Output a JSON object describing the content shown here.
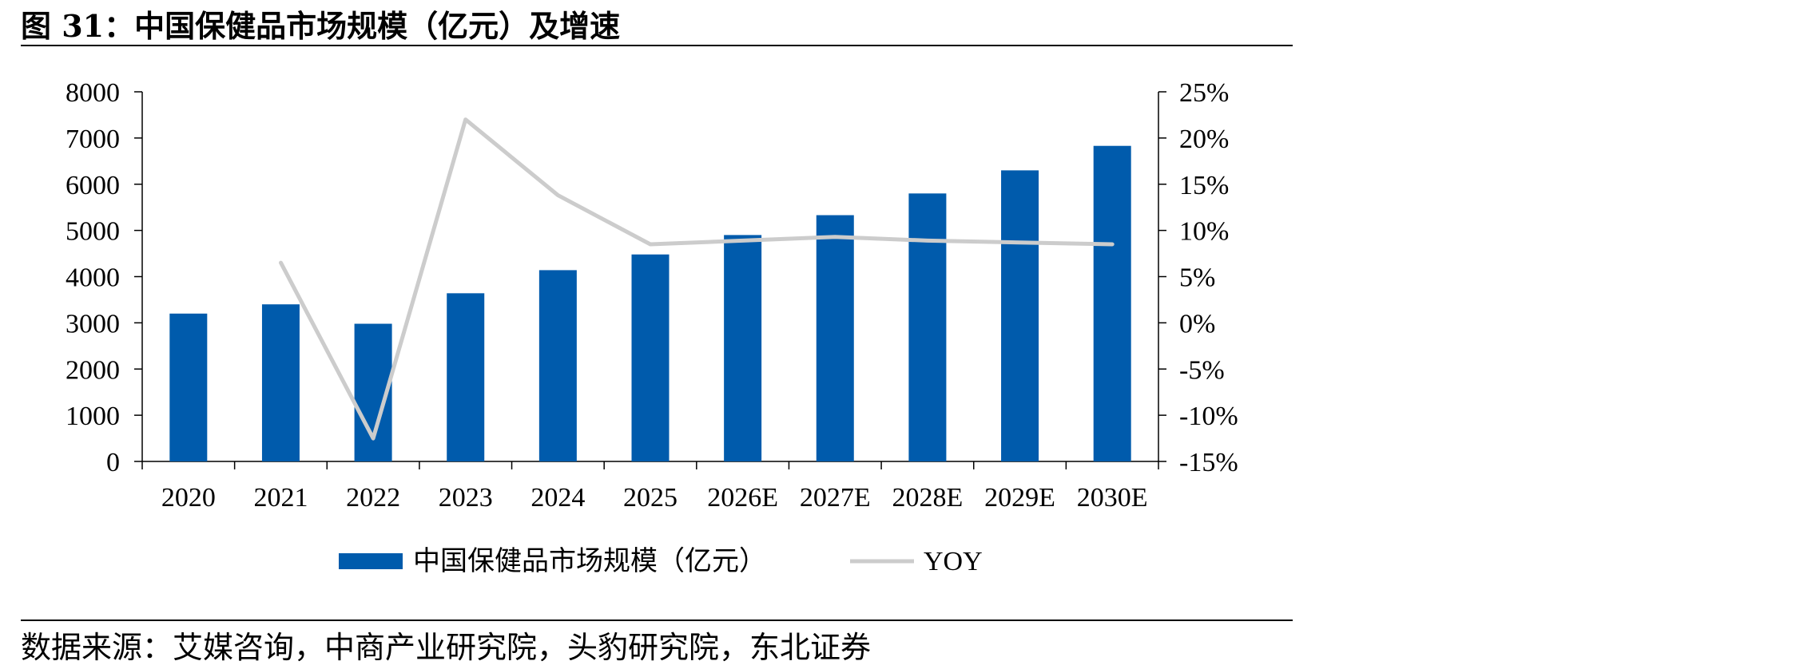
{
  "figure": {
    "title": "图 31：中国保健品市场规模（亿元）及增速",
    "source": "数据来源：艾媒咨询，中商产业研究院，头豹研究院，东北证券"
  },
  "colors": {
    "bar": "#005bac",
    "line": "#cccccc",
    "axis": "#000000"
  },
  "chart_data": {
    "type": "bar",
    "title": "",
    "categories": [
      "2020",
      "2021",
      "2022",
      "2023",
      "2024",
      "2025",
      "2026E",
      "2027E",
      "2028E",
      "2029E",
      "2030E"
    ],
    "series": [
      {
        "name": "中国保健品市场规模（亿元）",
        "type": "bar",
        "axis": "left",
        "values": [
          3200,
          3400,
          2980,
          3640,
          4140,
          4480,
          4900,
          5330,
          5800,
          6300,
          6830
        ]
      },
      {
        "name": "YOY",
        "type": "line",
        "axis": "right",
        "values": [
          null,
          6.5,
          -12.5,
          22.0,
          13.8,
          8.5,
          8.9,
          9.3,
          8.9,
          8.7,
          8.5
        ]
      }
    ],
    "y_left": {
      "min": 0,
      "max": 8000,
      "ticks": [
        "0",
        "1000",
        "2000",
        "3000",
        "4000",
        "5000",
        "6000",
        "7000",
        "8000"
      ]
    },
    "y_right": {
      "min": -15,
      "max": 25,
      "ticks": [
        "-15%",
        "-10%",
        "-5%",
        "0%",
        "5%",
        "10%",
        "15%",
        "20%",
        "25%"
      ]
    },
    "grid": false,
    "legend": {
      "position": "bottom"
    }
  }
}
